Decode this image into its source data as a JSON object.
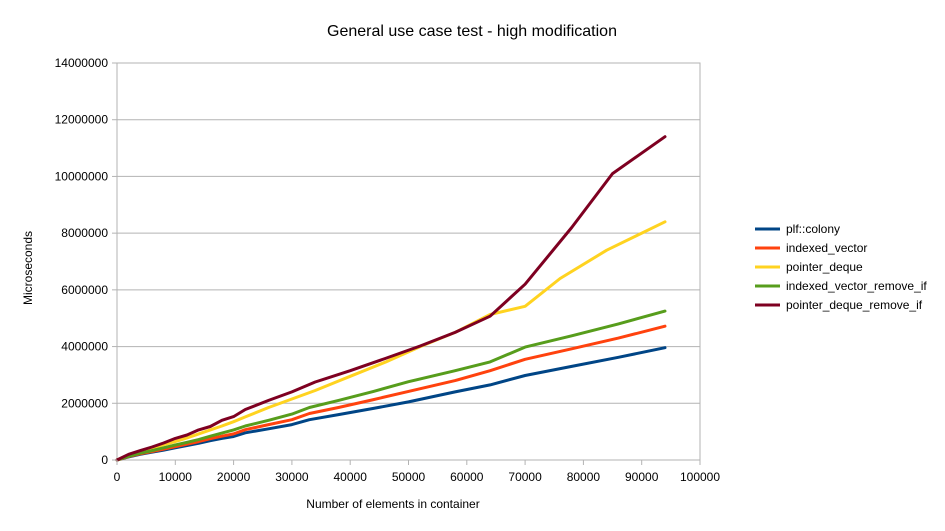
{
  "chart_data": {
    "type": "line",
    "title": "General use case test - high modification",
    "xlabel": "Number of elements in container",
    "ylabel": "Microseconds",
    "xlim": [
      0,
      100000
    ],
    "ylim": [
      0,
      14000000
    ],
    "x_ticks": [
      0,
      10000,
      20000,
      30000,
      40000,
      50000,
      60000,
      70000,
      80000,
      90000,
      100000
    ],
    "y_ticks": [
      0,
      2000000,
      4000000,
      6000000,
      8000000,
      10000000,
      12000000,
      14000000
    ],
    "x_tick_labels": [
      "0",
      "10000",
      "20000",
      "30000",
      "40000",
      "50000",
      "60000",
      "70000",
      "80000",
      "90000",
      "100000"
    ],
    "y_tick_labels": [
      "0",
      "2000000",
      "4000000",
      "6000000",
      "8000000",
      "10000000",
      "12000000",
      "14000000"
    ],
    "grid": "horizontal",
    "legend_position": "right",
    "series": [
      {
        "name": "plf::colony",
        "color": "#004586",
        "points": [
          [
            0,
            0
          ],
          [
            2000,
            110000
          ],
          [
            4000,
            200000
          ],
          [
            6000,
            280000
          ],
          [
            8000,
            350000
          ],
          [
            10000,
            430000
          ],
          [
            12000,
            510000
          ],
          [
            14000,
            590000
          ],
          [
            16000,
            680000
          ],
          [
            18000,
            760000
          ],
          [
            20000,
            830000
          ],
          [
            22000,
            960000
          ],
          [
            26000,
            1100000
          ],
          [
            30000,
            1250000
          ],
          [
            33000,
            1420000
          ],
          [
            38000,
            1600000
          ],
          [
            44000,
            1820000
          ],
          [
            50000,
            2050000
          ],
          [
            58000,
            2400000
          ],
          [
            64000,
            2650000
          ],
          [
            70000,
            2980000
          ],
          [
            78000,
            3300000
          ],
          [
            86000,
            3620000
          ],
          [
            94000,
            3960000
          ]
        ]
      },
      {
        "name": "indexed_vector",
        "color": "#ff420e",
        "points": [
          [
            0,
            0
          ],
          [
            2000,
            120000
          ],
          [
            4000,
            220000
          ],
          [
            6000,
            300000
          ],
          [
            8000,
            380000
          ],
          [
            10000,
            470000
          ],
          [
            12000,
            560000
          ],
          [
            14000,
            650000
          ],
          [
            16000,
            750000
          ],
          [
            18000,
            840000
          ],
          [
            20000,
            920000
          ],
          [
            22000,
            1070000
          ],
          [
            26000,
            1250000
          ],
          [
            30000,
            1420000
          ],
          [
            33000,
            1640000
          ],
          [
            38000,
            1850000
          ],
          [
            44000,
            2130000
          ],
          [
            50000,
            2420000
          ],
          [
            58000,
            2800000
          ],
          [
            64000,
            3150000
          ],
          [
            70000,
            3550000
          ],
          [
            78000,
            3920000
          ],
          [
            86000,
            4300000
          ],
          [
            94000,
            4720000
          ]
        ]
      },
      {
        "name": "pointer_deque",
        "color": "#ffd320",
        "points": [
          [
            0,
            0
          ],
          [
            2000,
            180000
          ],
          [
            4000,
            300000
          ],
          [
            6000,
            420000
          ],
          [
            8000,
            540000
          ],
          [
            10000,
            650000
          ],
          [
            12000,
            780000
          ],
          [
            14000,
            920000
          ],
          [
            16000,
            1060000
          ],
          [
            18000,
            1200000
          ],
          [
            20000,
            1350000
          ],
          [
            22000,
            1520000
          ],
          [
            26000,
            1850000
          ],
          [
            30000,
            2150000
          ],
          [
            34000,
            2450000
          ],
          [
            40000,
            2950000
          ],
          [
            46000,
            3450000
          ],
          [
            52000,
            4000000
          ],
          [
            58000,
            4500000
          ],
          [
            64000,
            5130000
          ],
          [
            70000,
            5420000
          ],
          [
            76000,
            6400000
          ],
          [
            84000,
            7400000
          ],
          [
            94000,
            8400000
          ]
        ]
      },
      {
        "name": "indexed_vector_remove_if",
        "color": "#579d1c",
        "points": [
          [
            0,
            0
          ],
          [
            2000,
            130000
          ],
          [
            4000,
            240000
          ],
          [
            6000,
            330000
          ],
          [
            8000,
            430000
          ],
          [
            10000,
            530000
          ],
          [
            12000,
            620000
          ],
          [
            14000,
            720000
          ],
          [
            16000,
            840000
          ],
          [
            18000,
            950000
          ],
          [
            20000,
            1060000
          ],
          [
            22000,
            1200000
          ],
          [
            26000,
            1400000
          ],
          [
            30000,
            1620000
          ],
          [
            33000,
            1850000
          ],
          [
            38000,
            2100000
          ],
          [
            44000,
            2420000
          ],
          [
            50000,
            2760000
          ],
          [
            58000,
            3150000
          ],
          [
            64000,
            3460000
          ],
          [
            70000,
            3980000
          ],
          [
            78000,
            4380000
          ],
          [
            86000,
            4800000
          ],
          [
            94000,
            5250000
          ]
        ]
      },
      {
        "name": "pointer_deque_remove_if",
        "color": "#7e0021",
        "points": [
          [
            0,
            0
          ],
          [
            2000,
            200000
          ],
          [
            4000,
            330000
          ],
          [
            6000,
            460000
          ],
          [
            8000,
            600000
          ],
          [
            10000,
            760000
          ],
          [
            12000,
            880000
          ],
          [
            14000,
            1060000
          ],
          [
            16000,
            1180000
          ],
          [
            18000,
            1400000
          ],
          [
            20000,
            1530000
          ],
          [
            22000,
            1780000
          ],
          [
            26000,
            2100000
          ],
          [
            30000,
            2400000
          ],
          [
            34000,
            2750000
          ],
          [
            40000,
            3150000
          ],
          [
            46000,
            3580000
          ],
          [
            52000,
            4020000
          ],
          [
            58000,
            4500000
          ],
          [
            64000,
            5070000
          ],
          [
            70000,
            6200000
          ],
          [
            78000,
            8200000
          ],
          [
            85000,
            10100000
          ],
          [
            94000,
            11400000
          ]
        ]
      }
    ]
  }
}
